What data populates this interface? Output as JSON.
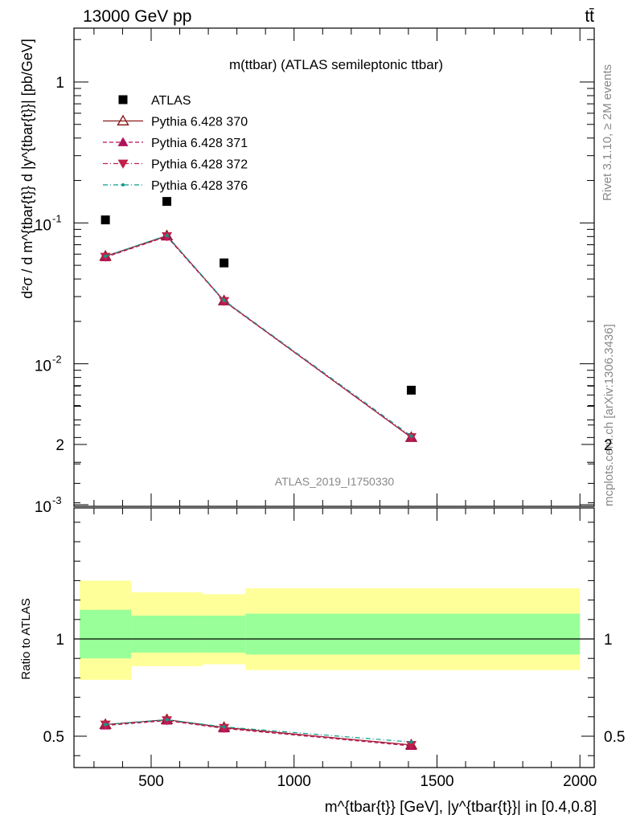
{
  "header": {
    "left": "13000 GeV pp",
    "right": "tt̄"
  },
  "side": {
    "rivet": "Rivet 3.1.10, ≥ 2M events",
    "mcplots": "mcplots.cern.ch [arXiv:1306.3436]"
  },
  "chart_data": [
    {
      "type": "scatter",
      "title": "m(ttbar) (ATLAS semileptonic ttbar)",
      "watermark": "ATLAS_2019_I1750330",
      "ylabel": "d²σ / d m^{tbar{t}} d |y^{tbar{t}}| [pb/GeV]",
      "yscale": "log",
      "ylim": [
        0.001,
        2.3
      ],
      "xlim": [
        230,
        2050
      ],
      "yticks": [
        "10^-3",
        "10^-2",
        "10^-1",
        "1"
      ],
      "legend_position": "top-left",
      "series": [
        {
          "name": "ATLAS",
          "marker": "square",
          "color": "#000000",
          "x": [
            340,
            555,
            755,
            1410
          ],
          "y": [
            0.105,
            0.142,
            0.052,
            0.0065
          ]
        },
        {
          "name": "Pythia 6.428 370",
          "marker": "open-triangle-up",
          "line": "solid",
          "color": "#8b1a1a",
          "x": [
            340,
            555,
            755,
            1410
          ],
          "y": [
            0.058,
            0.081,
            0.028,
            0.003
          ]
        },
        {
          "name": "Pythia 6.428 371",
          "marker": "triangle-up",
          "line": "dashed",
          "color": "#b0125a",
          "x": [
            340,
            555,
            755,
            1410
          ],
          "y": [
            0.057,
            0.08,
            0.0278,
            0.003
          ]
        },
        {
          "name": "Pythia 6.428 372",
          "marker": "triangle-down",
          "line": "dashdot",
          "color": "#c0204a",
          "x": [
            340,
            555,
            755,
            1410
          ],
          "y": [
            0.0575,
            0.0805,
            0.0279,
            0.00302
          ]
        },
        {
          "name": "Pythia 6.428 376",
          "marker": "dot",
          "line": "dashdot",
          "color": "#0f9b8e",
          "x": [
            340,
            555,
            755,
            1410
          ],
          "y": [
            0.058,
            0.0815,
            0.0282,
            0.00307
          ]
        }
      ]
    },
    {
      "type": "line",
      "ylabel": "Ratio to ATLAS",
      "xlabel": "m^{tbar{t}} [GeV], |y^{tbar{t}}| in [0.4,0.8]",
      "xlim": [
        230,
        2050
      ],
      "ylim": [
        0.35,
        2.35
      ],
      "xticks": [
        500,
        1000,
        1500,
        2000
      ],
      "yticks": [
        0.5,
        1,
        2
      ],
      "reference_line": 1,
      "bands": {
        "bin_edges": [
          250,
          430,
          680,
          830,
          2000
        ],
        "green_low": [
          0.9,
          0.93,
          0.93,
          0.92
        ],
        "green_high": [
          1.15,
          1.12,
          1.12,
          1.13
        ],
        "yellow_low": [
          0.79,
          0.86,
          0.87,
          0.84
        ],
        "yellow_high": [
          1.3,
          1.24,
          1.23,
          1.26
        ],
        "green_color": "#99ff99",
        "yellow_color": "#ffff99"
      },
      "series": [
        {
          "name": "Pythia 6.428 370",
          "marker": "open-triangle-up",
          "line": "solid",
          "color": "#8b1a1a",
          "x": [
            340,
            555,
            755,
            1410
          ],
          "y": [
            0.56,
            0.585,
            0.545,
            0.455
          ]
        },
        {
          "name": "Pythia 6.428 371",
          "marker": "triangle-up",
          "line": "dashed",
          "color": "#b0125a",
          "x": [
            340,
            555,
            755,
            1410
          ],
          "y": [
            0.555,
            0.58,
            0.54,
            0.45
          ]
        },
        {
          "name": "Pythia 6.428 372",
          "marker": "triangle-down",
          "line": "dashdot",
          "color": "#c0204a",
          "x": [
            340,
            555,
            755,
            1410
          ],
          "y": [
            0.56,
            0.582,
            0.543,
            0.455
          ]
        },
        {
          "name": "Pythia 6.428 376",
          "marker": "dot",
          "line": "dashdot",
          "color": "#0f9b8e",
          "x": [
            340,
            555,
            755,
            1410
          ],
          "y": [
            0.56,
            0.585,
            0.548,
            0.47
          ]
        }
      ]
    }
  ]
}
